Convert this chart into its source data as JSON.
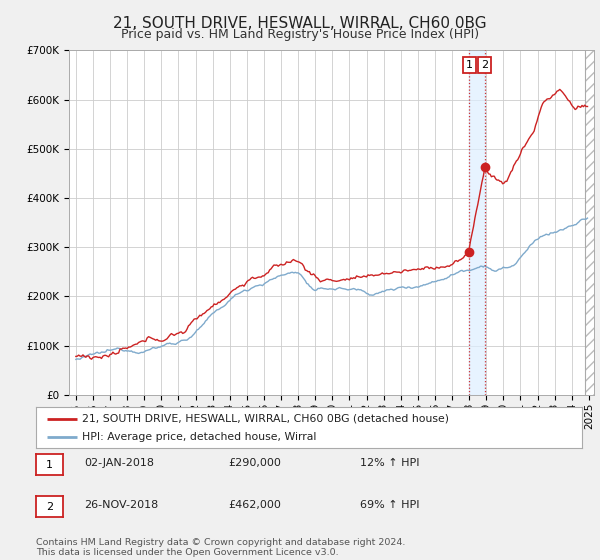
{
  "title": "21, SOUTH DRIVE, HESWALL, WIRRAL, CH60 0BG",
  "subtitle": "Price paid vs. HM Land Registry's House Price Index (HPI)",
  "ylim": [
    0,
    700000
  ],
  "yticks": [
    0,
    100000,
    200000,
    300000,
    400000,
    500000,
    600000,
    700000
  ],
  "ytick_labels": [
    "£0",
    "£100K",
    "£200K",
    "£300K",
    "£400K",
    "£500K",
    "£600K",
    "£700K"
  ],
  "hpi_color": "#7faacc",
  "price_color": "#cc2222",
  "sale1_date_num": 2018.01,
  "sale1_price": 290000,
  "sale2_date_num": 2018.91,
  "sale2_price": 462000,
  "vline_color": "#cc3333",
  "shade_color": "#ddeeff",
  "background_color": "#f0f0f0",
  "plot_bg_color": "#ffffff",
  "grid_color": "#cccccc",
  "legend_entries": [
    "21, SOUTH DRIVE, HESWALL, WIRRAL, CH60 0BG (detached house)",
    "HPI: Average price, detached house, Wirral"
  ],
  "table_rows": [
    [
      "1",
      "02-JAN-2018",
      "£290,000",
      "12% ↑ HPI"
    ],
    [
      "2",
      "26-NOV-2018",
      "£462,000",
      "69% ↑ HPI"
    ]
  ],
  "footnote1": "Contains HM Land Registry data © Crown copyright and database right 2024.",
  "footnote2": "This data is licensed under the Open Government Licence v3.0.",
  "title_fontsize": 11,
  "subtitle_fontsize": 9,
  "tick_fontsize": 7.5,
  "annot_fontsize": 8
}
